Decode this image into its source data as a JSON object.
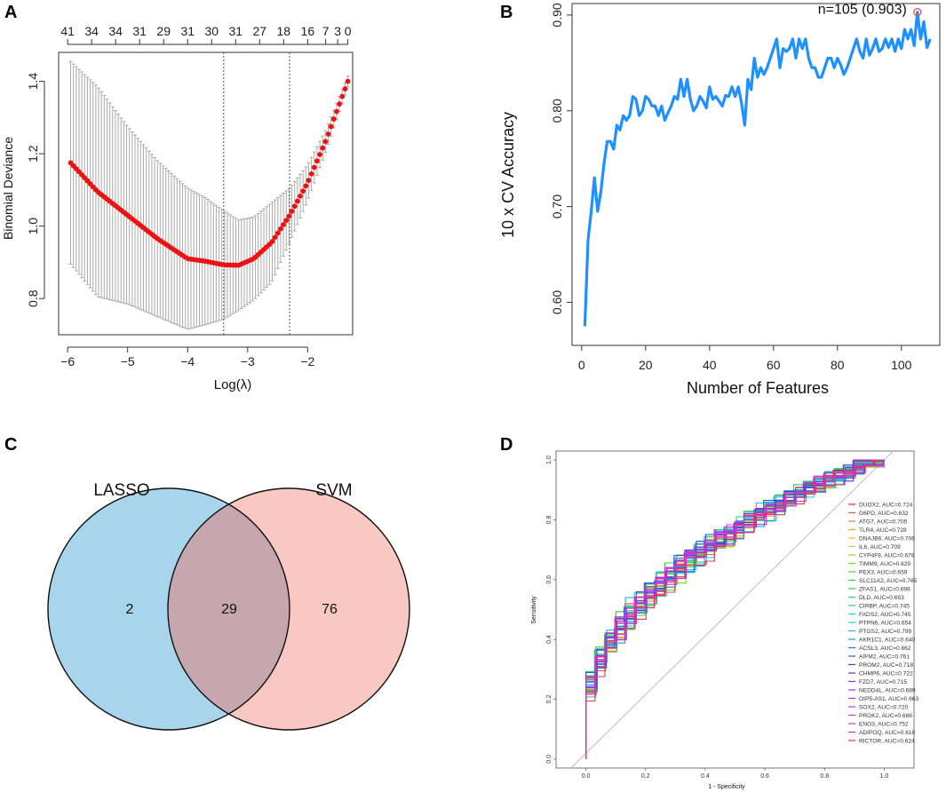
{
  "panels": {
    "a": {
      "letter": "A"
    },
    "b": {
      "letter": "B"
    },
    "c": {
      "letter": "C"
    },
    "d": {
      "letter": "D"
    }
  },
  "chart_data": [
    {
      "panel": "A",
      "type": "scatter",
      "xlabel": "Log(λ)",
      "ylabel": "Binomial Deviance",
      "xlim": [
        -6.15,
        -1.25
      ],
      "ylim": [
        0.7,
        1.48
      ],
      "xticks": [
        -6,
        -5,
        -4,
        -3,
        -2
      ],
      "yticks": [
        0.8,
        1.0,
        1.2,
        1.4
      ],
      "top_ticks": [
        -6,
        -5.6,
        -5.2,
        -4.8,
        -4.4,
        -4.0,
        -3.6,
        -3.2,
        -2.8,
        -2.4,
        -2.0,
        -1.7,
        -1.5,
        -1.33
      ],
      "top_labels": [
        "41",
        "34",
        "34",
        "31",
        "29",
        "31",
        "30",
        "31",
        "27",
        "18",
        "16",
        "7",
        "3",
        "0"
      ],
      "vlines": [
        -3.4,
        -2.3
      ],
      "curve_knots_x": [
        -5.95,
        -5.5,
        -5.0,
        -4.5,
        -4.0,
        -3.7,
        -3.4,
        -3.15,
        -2.9,
        -2.6,
        -2.3,
        -2.0,
        -1.7,
        -1.33
      ],
      "curve_knots_y": [
        1.175,
        1.095,
        1.03,
        0.965,
        0.91,
        0.903,
        0.893,
        0.892,
        0.91,
        0.955,
        1.03,
        1.12,
        1.235,
        1.4
      ],
      "error_knots_y": [
        0.28,
        0.29,
        0.245,
        0.215,
        0.195,
        0.175,
        0.15,
        0.125,
        0.115,
        0.11,
        0.075,
        0.05,
        0.03,
        0.015
      ],
      "n_points": 100,
      "point_color": "#ee1111",
      "error_color": "#aaaaaa"
    },
    {
      "panel": "B",
      "type": "line",
      "xlabel": "Number of Features",
      "ylabel": "10 x CV Accuracy",
      "xlim": [
        -3,
        112
      ],
      "ylim": [
        0.555,
        0.912
      ],
      "xticks": [
        0,
        20,
        40,
        60,
        80,
        100
      ],
      "yticks": [
        0.6,
        0.7,
        0.8,
        0.9
      ],
      "ytick_labels": [
        "0.60",
        "0.70",
        "0.80",
        "0.90"
      ],
      "values": [
        0.575,
        0.665,
        0.695,
        0.73,
        0.695,
        0.715,
        0.745,
        0.768,
        0.768,
        0.76,
        0.785,
        0.78,
        0.795,
        0.79,
        0.795,
        0.815,
        0.812,
        0.795,
        0.8,
        0.815,
        0.812,
        0.805,
        0.805,
        0.795,
        0.805,
        0.79,
        0.798,
        0.805,
        0.815,
        0.812,
        0.833,
        0.815,
        0.833,
        0.812,
        0.8,
        0.805,
        0.815,
        0.81,
        0.803,
        0.825,
        0.812,
        0.815,
        0.81,
        0.805,
        0.816,
        0.815,
        0.825,
        0.815,
        0.825,
        0.808,
        0.785,
        0.833,
        0.822,
        0.855,
        0.835,
        0.845,
        0.838,
        0.845,
        0.855,
        0.865,
        0.875,
        0.845,
        0.865,
        0.862,
        0.865,
        0.875,
        0.855,
        0.875,
        0.865,
        0.875,
        0.855,
        0.845,
        0.845,
        0.835,
        0.835,
        0.845,
        0.855,
        0.855,
        0.845,
        0.855,
        0.848,
        0.838,
        0.845,
        0.855,
        0.865,
        0.875,
        0.862,
        0.855,
        0.875,
        0.858,
        0.865,
        0.875,
        0.862,
        0.865,
        0.875,
        0.866,
        0.875,
        0.862,
        0.875,
        0.865,
        0.885,
        0.875,
        0.885,
        0.868,
        0.903,
        0.875,
        0.893,
        0.866,
        0.875
      ],
      "annotation": "n=105 (0.903)",
      "annotation_x": 105,
      "annotation_y": 0.903,
      "line_color": "#1e90ff",
      "annotation_color": "#ee1111"
    },
    {
      "panel": "C",
      "type": "venn",
      "sets": [
        {
          "name": "LASSO",
          "color": "#1e9ad6",
          "fill": "#a8d4ec",
          "only": "2"
        },
        {
          "name": "SVM",
          "color": "#f26a5a",
          "fill": "#fac8c2",
          "only": "76"
        }
      ],
      "intersection": "29",
      "intersection_fill": "#c7a7af"
    },
    {
      "panel": "D",
      "type": "line",
      "xlabel": "1 - Specificity",
      "ylabel": "Sensitivity",
      "xlim": [
        -0.1,
        1.1
      ],
      "ylim": [
        -0.03,
        1.03
      ],
      "xticks": [
        0.0,
        0.2,
        0.4,
        0.6,
        0.8,
        1.0
      ],
      "xtick_labels": [
        "0.0",
        "0.2",
        "0.4",
        "0.6",
        "0.8",
        "1.0"
      ],
      "yticks": [
        0.0,
        0.2,
        0.4,
        0.6,
        0.8,
        1.0
      ],
      "ytick_labels": [
        "0.0",
        "0.2",
        "0.4",
        "0.6",
        "0.8",
        "1.0"
      ],
      "series": [
        {
          "name": "DUOX2, AUC=0.724",
          "auc": 0.724,
          "color": "#e41a3c"
        },
        {
          "name": "G6PD, AUC=0.632",
          "auc": 0.632,
          "color": "#f0503c"
        },
        {
          "name": "ATG7, AUC=0.705",
          "auc": 0.705,
          "color": "#f07828"
        },
        {
          "name": "TLR4, AUC=0.728",
          "auc": 0.728,
          "color": "#f0a028"
        },
        {
          "name": "DNAJB6, AUC=0.706",
          "auc": 0.706,
          "color": "#e6c81e"
        },
        {
          "name": "IL6, AUC=0.709",
          "auc": 0.709,
          "color": "#c8d21e"
        },
        {
          "name": "CYP4F8, AUC=0.678",
          "auc": 0.678,
          "color": "#a0d21e"
        },
        {
          "name": "TIMM9, AUC=0.629",
          "auc": 0.629,
          "color": "#78d21e"
        },
        {
          "name": "PEX3, AUC=0.659",
          "auc": 0.659,
          "color": "#50d228"
        },
        {
          "name": "SLC11A2, AUC=0.765",
          "auc": 0.765,
          "color": "#28d23c"
        },
        {
          "name": "ZFAS1, AUC=0.698",
          "auc": 0.698,
          "color": "#1ed25a"
        },
        {
          "name": "DLD, AUC=0.653",
          "auc": 0.653,
          "color": "#1ed278"
        },
        {
          "name": "CIRBP, AUC=0.745",
          "auc": 0.745,
          "color": "#1ed296"
        },
        {
          "name": "FADS2, AUC=0.745",
          "auc": 0.745,
          "color": "#1ed2b4"
        },
        {
          "name": "PTPN6, AUC=0.654",
          "auc": 0.654,
          "color": "#1ed2d2"
        },
        {
          "name": "PTGS2, AUC=0.799",
          "auc": 0.799,
          "color": "#1eb4e6"
        },
        {
          "name": "AKR1C1, AUC=0.640",
          "auc": 0.64,
          "color": "#1e96e6"
        },
        {
          "name": "ACSL3, AUC=0.662",
          "auc": 0.662,
          "color": "#1e78e6"
        },
        {
          "name": "AIFM2, AUC=0.761",
          "auc": 0.761,
          "color": "#1e5ae6"
        },
        {
          "name": "PROM2, AUC=0.718",
          "auc": 0.718,
          "color": "#3c3ce6"
        },
        {
          "name": "CHMP6, AUC=0.722",
          "auc": 0.722,
          "color": "#5a32e6"
        },
        {
          "name": "FZD7, AUC=0.715",
          "auc": 0.715,
          "color": "#7832e6"
        },
        {
          "name": "NEDD4L, AUC=0.689",
          "auc": 0.689,
          "color": "#9632e6"
        },
        {
          "name": "OIP5-AS1, AUC=0.663",
          "auc": 0.663,
          "color": "#b432e6"
        },
        {
          "name": "SOX2, AUC=0.720",
          "auc": 0.72,
          "color": "#d232dc"
        },
        {
          "name": "PROK2, AUC=0.686",
          "auc": 0.686,
          "color": "#e632c8"
        },
        {
          "name": "ENO3, AUC=0.752",
          "auc": 0.752,
          "color": "#e632a0"
        },
        {
          "name": "ADIPOQ, AUC=0.618",
          "auc": 0.618,
          "color": "#e63282"
        },
        {
          "name": "RICTOR, AUC=0.624",
          "auc": 0.624,
          "color": "#e63264"
        }
      ]
    }
  ]
}
